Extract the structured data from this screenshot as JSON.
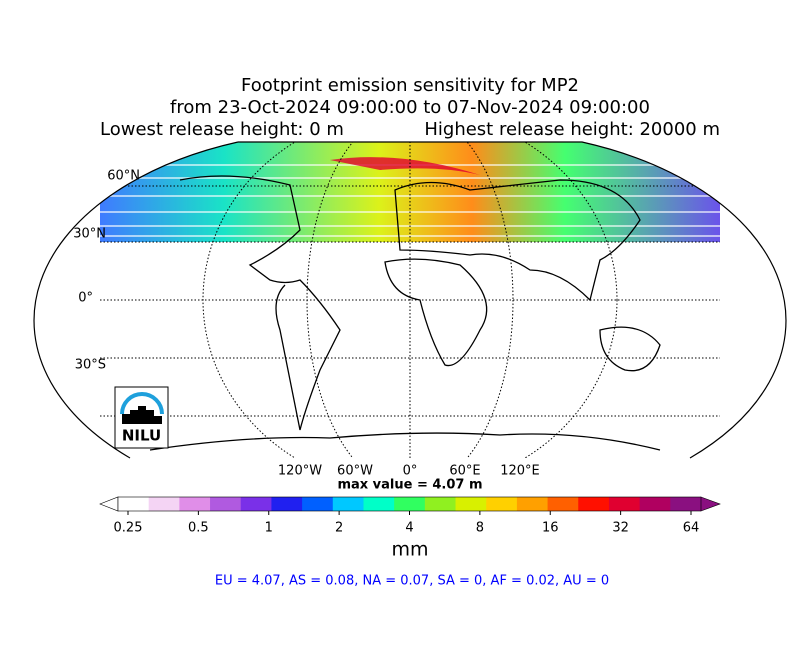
{
  "title": [
    "Footprint emission sensitivity for MP2",
    "from 23-Oct-2024 09:00:00 to 07-Nov-2024 09:00:00",
    "Lowest release height: 0 m",
    "Highest release height: 20000 m"
  ],
  "map": {
    "lat_labels": [
      "60°N",
      "30°N",
      "0°",
      "30°S"
    ],
    "lon_labels": [
      "120°W",
      "60°W",
      "0°",
      "60°E",
      "120°E"
    ],
    "max_label": "max value = 4.07 m"
  },
  "logo": {
    "text": "NILU"
  },
  "colorbar": {
    "ticks": [
      0.25,
      0.5,
      1,
      2,
      4,
      8,
      16,
      32,
      64
    ],
    "lim": [
      0.25,
      64
    ],
    "log": true,
    "unit": "mm",
    "colors": [
      "#ffffff",
      "#f4d4f4",
      "#e08ee8",
      "#b05ae0",
      "#7a30e8",
      "#2020f0",
      "#0060ff",
      "#00c8ff",
      "#00ffc8",
      "#30ff60",
      "#90f020",
      "#d8f000",
      "#ffd000",
      "#ffa000",
      "#ff6000",
      "#ff1000",
      "#e00030",
      "#b00060",
      "#8a1080"
    ]
  },
  "footer": "EU = 4.07,  AS = 0.08,  NA = 0.07,  SA = 0,  AF = 0.02,  AU = 0"
}
